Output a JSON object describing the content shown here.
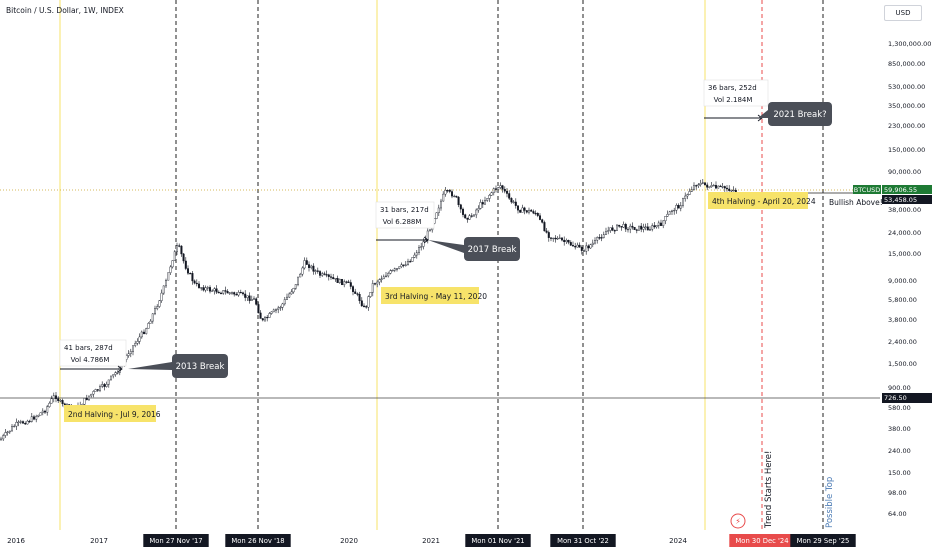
{
  "header": {
    "title": "Bitcoin / U.S. Dollar, 1W, INDEX",
    "currency_button": "USD"
  },
  "colors": {
    "up": "#131722",
    "down": "#131722",
    "accent": "#f2e34a",
    "price_line": "#c9a227",
    "red": "#e84b4b",
    "halving": "#f7e36a"
  },
  "y_ticks": [
    "1,300,000.00",
    "850,000.00",
    "530,000.00",
    "350,000.00",
    "230,000.00",
    "150,000.00",
    "90,000.00",
    "58,000.00",
    "38,000.00",
    "24,000.00",
    "15,000.00",
    "9,000.00",
    "5,800.00",
    "3,800.00",
    "2,400.00",
    "1,500.00",
    "900.00",
    "580.00",
    "380.00",
    "240.00",
    "150.00",
    "98.00",
    "64.00"
  ],
  "x_ticks": [
    {
      "label": "2016",
      "kind": "plain"
    },
    {
      "label": "2017",
      "kind": "plain"
    },
    {
      "label": "Mon 27 Nov '17",
      "kind": "dark"
    },
    {
      "label": "Mon 26 Nov '18",
      "kind": "dark"
    },
    {
      "label": "2020",
      "kind": "plain"
    },
    {
      "label": "2021",
      "kind": "plain"
    },
    {
      "label": "Mon 01 Nov '21",
      "kind": "dark"
    },
    {
      "label": "Mon 31 Oct '22",
      "kind": "dark"
    },
    {
      "label": "2024",
      "kind": "plain"
    },
    {
      "label": "Mon 30 Dec '24",
      "kind": "red"
    },
    {
      "label": "Mon 29 Sep '25",
      "kind": "dark"
    }
  ],
  "price_tags": {
    "btc_label": "BTCUSD",
    "btc_value": "59,906.55",
    "level_1": "53,458.05",
    "level_2": "726.50"
  },
  "halvings": [
    "2nd Halving - Jul 9, 2016",
    "3rd Halving - May 11, 2020",
    "4th Halving - April 20, 2024"
  ],
  "measures": [
    {
      "line1": "41 bars, 287d",
      "line2": "Vol 4.786M"
    },
    {
      "line1": "31 bars, 217d",
      "line2": "Vol 6.288M"
    },
    {
      "line1": "36 bars, 252d",
      "line2": "Vol 2.184M"
    }
  ],
  "callouts": [
    "2013 Break",
    "2017 Break",
    "2021 Break?"
  ],
  "notes": {
    "bullish": "Bullish Above!",
    "trend": "Trend Starts Here!",
    "possible_top": "Possible Top"
  },
  "chart_data": {
    "type": "line",
    "title": "Bitcoin / U.S. Dollar, 1W, INDEX",
    "y_scale": "log",
    "ylim": [
      45,
      2000000
    ],
    "series": [
      {
        "name": "BTCUSD",
        "x": [
          "2015-07",
          "2016-01",
          "2016-07",
          "2016-12",
          "2017-06",
          "2017-12",
          "2018-06",
          "2018-12",
          "2019-06",
          "2020-03",
          "2020-06",
          "2020-12",
          "2021-04",
          "2021-07",
          "2021-11",
          "2022-06",
          "2022-11",
          "2023-06",
          "2023-12",
          "2024-03",
          "2024-08"
        ],
        "values": [
          290,
          420,
          650,
          950,
          2500,
          19000,
          6500,
          3300,
          11000,
          5000,
          9300,
          28000,
          62000,
          33000,
          67000,
          20000,
          16500,
          30000,
          42000,
          70000,
          59906
        ]
      }
    ]
  }
}
